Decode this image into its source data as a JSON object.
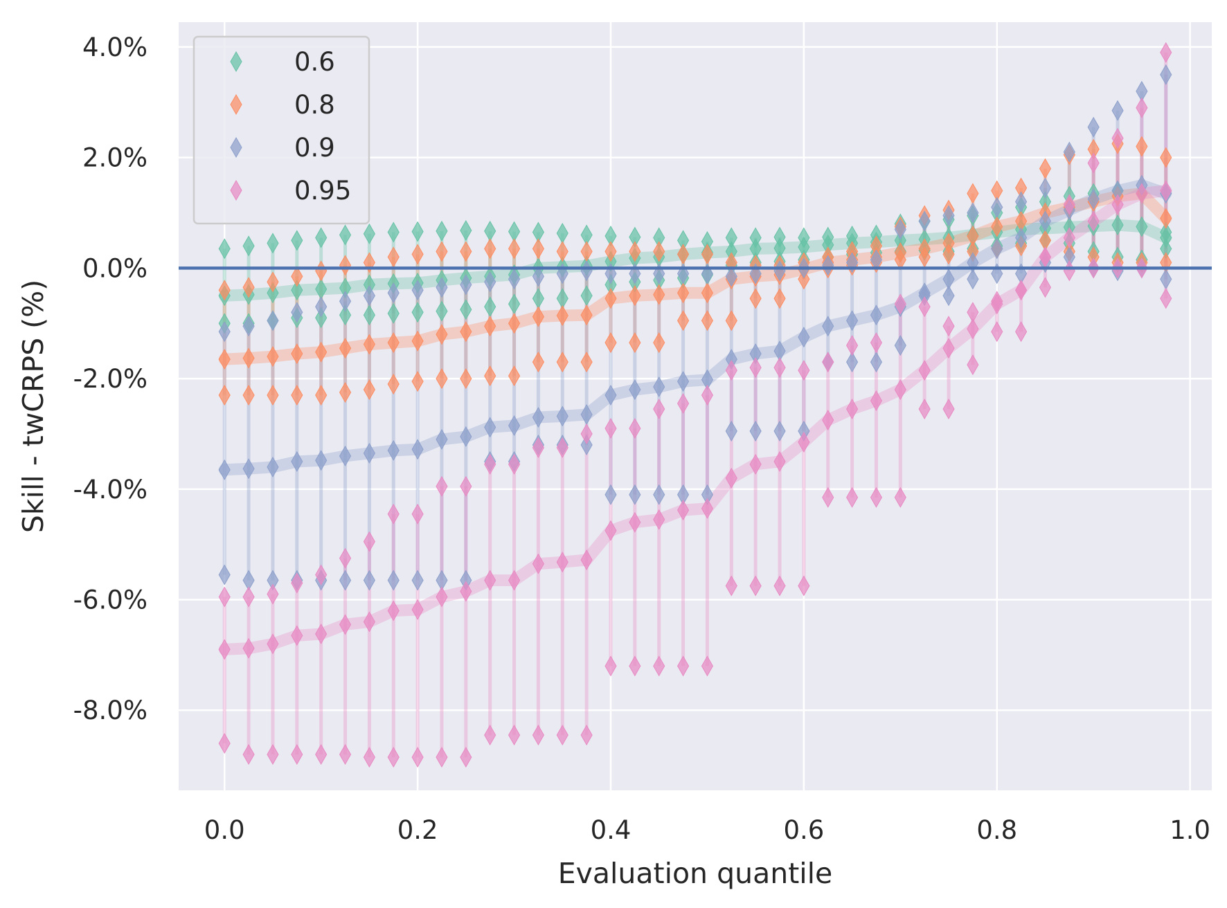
{
  "chart_data": {
    "type": "line",
    "title": "",
    "xlabel": "Evaluation quantile",
    "ylabel": "Skill - twCRPS (%)",
    "xlim": [
      -0.0475,
      1.0225
    ],
    "ylim": [
      -9.45,
      4.45
    ],
    "xticks": [
      0.0,
      0.2,
      0.4,
      0.6,
      0.8,
      1.0
    ],
    "xtick_labels": [
      "0.0",
      "0.2",
      "0.4",
      "0.6",
      "0.8",
      "1.0"
    ],
    "yticks": [
      4,
      2,
      0,
      -2,
      -4,
      -6,
      -8
    ],
    "ytick_labels": [
      "4.0%",
      "2.0%",
      "0.0%",
      "-2.0%",
      "-4.0%",
      "-6.0%",
      "-8.0%"
    ],
    "grid": true,
    "background": "#eaeaf2",
    "reference_line": {
      "y": 0,
      "color": "#4c72b0"
    },
    "legend": {
      "position": "top-left",
      "marker": "diamond"
    },
    "x": [
      0.0,
      0.025,
      0.05,
      0.075,
      0.1,
      0.125,
      0.15,
      0.175,
      0.2,
      0.225,
      0.25,
      0.275,
      0.3,
      0.325,
      0.35,
      0.375,
      0.4,
      0.425,
      0.45,
      0.475,
      0.5,
      0.525,
      0.55,
      0.575,
      0.6,
      0.625,
      0.65,
      0.675,
      0.7,
      0.725,
      0.75,
      0.775,
      0.8,
      0.825,
      0.85,
      0.875,
      0.9,
      0.925,
      0.95,
      0.975
    ],
    "series": [
      {
        "name": "0.6",
        "color": "#66c2a5",
        "mean": [
          -0.5,
          -0.48,
          -0.45,
          -0.4,
          -0.38,
          -0.36,
          -0.3,
          -0.28,
          -0.27,
          -0.22,
          -0.18,
          -0.15,
          -0.12,
          0.0,
          0.02,
          0.04,
          0.12,
          0.18,
          0.2,
          0.25,
          0.28,
          0.3,
          0.35,
          0.36,
          0.38,
          0.42,
          0.45,
          0.47,
          0.5,
          0.52,
          0.55,
          0.6,
          0.65,
          0.7,
          0.72,
          0.74,
          0.76,
          0.78,
          0.75,
          0.55
        ],
        "upper": [
          0.35,
          0.4,
          0.45,
          0.5,
          0.55,
          0.6,
          0.62,
          0.65,
          0.66,
          0.67,
          0.68,
          0.67,
          0.66,
          0.65,
          0.63,
          0.6,
          0.58,
          0.56,
          0.55,
          0.5,
          0.48,
          0.55,
          0.55,
          0.56,
          0.55,
          0.56,
          0.58,
          0.6,
          0.8,
          0.85,
          0.88,
          0.95,
          1.0,
          1.1,
          1.2,
          1.3,
          1.35,
          1.4,
          1.35,
          0.65
        ],
        "lower": [
          -1.0,
          -1.0,
          -0.95,
          -0.9,
          -0.9,
          -0.85,
          -0.85,
          -0.82,
          -0.8,
          -0.78,
          -0.75,
          -0.7,
          -0.65,
          -0.55,
          -0.55,
          -0.5,
          -0.3,
          -0.25,
          -0.22,
          -0.18,
          -0.12,
          0.05,
          0.1,
          0.12,
          0.15,
          0.2,
          0.25,
          0.28,
          0.3,
          0.32,
          0.3,
          0.35,
          0.4,
          0.45,
          0.5,
          0.45,
          0.3,
          0.2,
          0.15,
          0.35
        ]
      },
      {
        "name": "0.8",
        "color": "#fc8d62",
        "mean": [
          -1.65,
          -1.63,
          -1.6,
          -1.55,
          -1.52,
          -1.45,
          -1.38,
          -1.35,
          -1.32,
          -1.2,
          -1.15,
          -1.05,
          -1.0,
          -0.88,
          -0.86,
          -0.85,
          -0.55,
          -0.5,
          -0.48,
          -0.45,
          -0.45,
          -0.2,
          -0.15,
          -0.12,
          -0.02,
          0.1,
          0.15,
          0.2,
          0.28,
          0.35,
          0.45,
          0.58,
          0.75,
          0.85,
          1.0,
          1.1,
          1.2,
          1.3,
          1.35,
          0.9
        ],
        "upper": [
          -0.4,
          -0.35,
          -0.25,
          -0.15,
          -0.05,
          0.05,
          0.1,
          0.2,
          0.25,
          0.3,
          0.3,
          0.35,
          0.35,
          0.35,
          0.3,
          0.3,
          0.3,
          0.3,
          0.3,
          0.25,
          0.25,
          0.1,
          0.05,
          0.05,
          0.1,
          0.2,
          0.3,
          0.4,
          0.75,
          0.95,
          1.05,
          1.35,
          1.4,
          1.45,
          1.8,
          2.05,
          2.15,
          2.25,
          2.2,
          2.0
        ],
        "lower": [
          -2.3,
          -2.3,
          -2.3,
          -2.3,
          -2.3,
          -2.25,
          -2.2,
          -2.1,
          -2.05,
          -2.0,
          -2.0,
          -1.95,
          -1.95,
          -1.7,
          -1.7,
          -1.7,
          -1.35,
          -1.35,
          -1.35,
          -0.95,
          -0.95,
          -0.95,
          -0.55,
          -0.55,
          -0.2,
          0.0,
          0.05,
          0.1,
          0.15,
          0.2,
          0.25,
          0.3,
          0.35,
          0.4,
          0.5,
          0.3,
          0.2,
          0.1,
          0.1,
          0.1
        ]
      },
      {
        "name": "0.9",
        "color": "#8da0cb",
        "mean": [
          -3.65,
          -3.63,
          -3.6,
          -3.5,
          -3.48,
          -3.4,
          -3.35,
          -3.3,
          -3.28,
          -3.1,
          -3.05,
          -2.88,
          -2.85,
          -2.7,
          -2.68,
          -2.65,
          -2.3,
          -2.2,
          -2.15,
          -2.05,
          -2.02,
          -1.65,
          -1.55,
          -1.5,
          -1.25,
          -1.05,
          -0.95,
          -0.85,
          -0.7,
          -0.45,
          -0.2,
          0.1,
          0.35,
          0.55,
          0.85,
          1.05,
          1.25,
          1.4,
          1.5,
          1.35
        ],
        "upper": [
          -1.15,
          -1.05,
          -0.95,
          -0.8,
          -0.7,
          -0.6,
          -0.5,
          -0.45,
          -0.4,
          -0.35,
          -0.3,
          -0.25,
          -0.2,
          -0.15,
          -0.1,
          -0.05,
          -0.1,
          -0.1,
          -0.1,
          -0.1,
          -0.1,
          -0.15,
          -0.1,
          -0.05,
          0.0,
          0.05,
          0.1,
          0.15,
          0.7,
          0.85,
          0.95,
          1.0,
          1.1,
          1.2,
          1.45,
          2.1,
          2.55,
          2.85,
          3.2,
          3.5
        ],
        "lower": [
          -5.55,
          -5.65,
          -5.65,
          -5.65,
          -5.65,
          -5.65,
          -5.65,
          -5.65,
          -5.65,
          -5.65,
          -5.65,
          -3.5,
          -3.5,
          -3.2,
          -3.2,
          -3.2,
          -4.1,
          -4.1,
          -4.1,
          -4.1,
          -4.1,
          -2.95,
          -2.95,
          -2.95,
          -2.95,
          -1.7,
          -1.7,
          -1.7,
          -1.4,
          -0.5,
          -0.5,
          -0.2,
          -0.1,
          -0.1,
          0.1,
          0.2,
          0.0,
          -0.05,
          0.0,
          -0.2
        ]
      },
      {
        "name": "0.95",
        "color": "#e78ac3",
        "mean": [
          -6.9,
          -6.88,
          -6.8,
          -6.65,
          -6.62,
          -6.45,
          -6.4,
          -6.2,
          -6.18,
          -5.95,
          -5.85,
          -5.65,
          -5.65,
          -5.35,
          -5.32,
          -5.28,
          -4.75,
          -4.6,
          -4.55,
          -4.38,
          -4.35,
          -3.8,
          -3.55,
          -3.5,
          -3.15,
          -2.75,
          -2.55,
          -2.4,
          -2.2,
          -1.85,
          -1.45,
          -1.1,
          -0.65,
          -0.4,
          0.2,
          0.55,
          0.85,
          1.15,
          1.35,
          1.4
        ],
        "upper": [
          -5.95,
          -5.95,
          -5.9,
          -5.7,
          -5.55,
          -5.25,
          -4.95,
          -4.45,
          -4.45,
          -3.95,
          -3.95,
          -3.55,
          -3.55,
          -3.25,
          -3.25,
          -3.0,
          -2.9,
          -2.9,
          -2.55,
          -2.45,
          -2.3,
          -1.85,
          -1.8,
          -1.8,
          -1.85,
          -1.7,
          -1.4,
          -1.35,
          -0.65,
          -0.7,
          -1.05,
          -0.8,
          -0.6,
          -0.4,
          0.2,
          1.15,
          1.9,
          2.35,
          2.9,
          3.9
        ],
        "lower": [
          -8.6,
          -8.8,
          -8.8,
          -8.8,
          -8.8,
          -8.8,
          -8.85,
          -8.85,
          -8.85,
          -8.85,
          -8.85,
          -8.45,
          -8.45,
          -8.45,
          -8.45,
          -8.45,
          -7.2,
          -7.2,
          -7.2,
          -7.2,
          -7.2,
          -5.75,
          -5.75,
          -5.75,
          -5.75,
          -4.15,
          -4.15,
          -4.15,
          -4.15,
          -2.55,
          -2.55,
          -1.75,
          -1.15,
          -1.15,
          -0.35,
          -0.05,
          0.0,
          0.0,
          0.0,
          -0.55
        ]
      }
    ]
  }
}
